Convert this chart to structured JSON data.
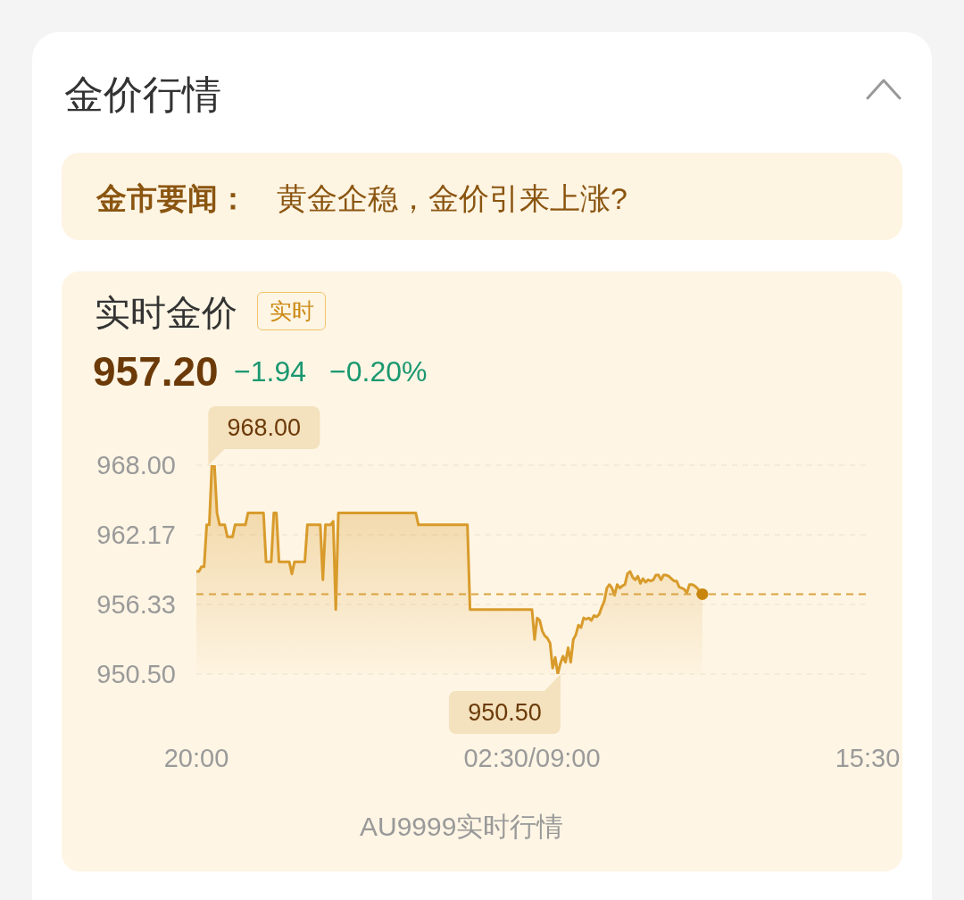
{
  "chart_data": {
    "type": "area",
    "title": "实时金价",
    "annotations": [
      "金价行情",
      "金市要闻：",
      "黄金企稳，金价引来上涨?",
      "实时",
      "957.20",
      "−1.94",
      "−0.20%",
      "AU9999实时行情",
      "968.00",
      "950.50"
    ],
    "categories": [
      "20:00",
      null,
      null,
      null,
      null,
      null,
      null,
      null,
      null,
      null,
      null,
      null,
      null,
      null,
      null,
      null,
      null,
      null,
      null,
      null,
      null,
      null,
      null,
      null,
      null,
      null,
      null,
      null,
      null,
      null,
      null,
      null,
      null,
      null,
      null,
      null,
      null,
      null,
      null,
      null,
      null,
      null,
      null,
      null,
      null,
      null,
      null,
      null,
      null,
      null,
      null,
      null,
      null,
      null,
      null,
      null,
      null,
      null,
      null,
      null,
      null,
      null,
      null,
      null,
      null,
      null,
      null,
      null,
      null,
      null,
      null,
      null,
      null,
      null,
      null,
      null,
      null,
      null,
      null,
      null,
      null,
      null,
      null,
      null,
      null,
      null,
      null,
      null,
      null,
      null,
      null,
      null,
      null,
      null,
      null,
      null,
      null,
      null,
      null,
      null,
      null,
      null,
      null,
      null,
      null,
      null,
      null,
      null,
      null,
      null,
      null,
      null,
      null,
      null,
      null,
      null,
      null,
      null,
      null,
      null,
      null,
      null,
      null,
      null,
      null,
      null,
      null,
      null,
      null,
      null,
      "02:30/09:00",
      null,
      null,
      null,
      null,
      null,
      null,
      null,
      null,
      null,
      null,
      null,
      null,
      null,
      null,
      null,
      null,
      null,
      null,
      null,
      null,
      null,
      null,
      null,
      null,
      null,
      null,
      null,
      null,
      null,
      null,
      null,
      null,
      null,
      null,
      null,
      null,
      null,
      null,
      null,
      null,
      null,
      null,
      null,
      null,
      null,
      null,
      null,
      null,
      null,
      null,
      null,
      null,
      null,
      null,
      null,
      null,
      null,
      null,
      null,
      null,
      null,
      null,
      null,
      null,
      null,
      null,
      null,
      null,
      null,
      null,
      null,
      null,
      null,
      null,
      null,
      null,
      null,
      null,
      null,
      null,
      null,
      null,
      null,
      null,
      null,
      null,
      null,
      null,
      null,
      null,
      null,
      null,
      null,
      null,
      null,
      null,
      null,
      null,
      null,
      null,
      null,
      null,
      null,
      null,
      null,
      null,
      null,
      null,
      null,
      null,
      null,
      null,
      null,
      null,
      null,
      null,
      null,
      null,
      null,
      null,
      null,
      null,
      null,
      null,
      null,
      null,
      null,
      null,
      null,
      "15:30"
    ],
    "series": [
      {
        "color": "#d89b2b",
        "values": [
          959.1,
          959.1,
          959.5,
          959.5,
          963,
          963,
          968,
          968,
          964,
          963,
          963,
          963,
          962,
          962,
          962,
          963,
          963,
          963,
          963,
          963,
          964,
          964,
          964,
          964,
          964,
          964,
          964,
          959.9,
          959.9,
          959.9,
          964,
          964,
          959.9,
          959.9,
          959.9,
          959.9,
          959.9,
          958.9,
          959.9,
          959.9,
          959.9,
          959.9,
          959.9,
          963,
          963,
          963,
          963,
          963,
          963,
          958.4,
          963,
          963,
          963,
          963.3,
          955.9,
          964,
          964,
          964,
          964,
          964,
          964,
          964,
          964,
          964,
          964,
          964,
          964,
          964,
          964,
          964,
          964,
          964,
          964,
          964,
          964,
          964,
          964,
          964,
          964,
          964,
          964,
          964,
          964,
          964,
          964,
          964,
          963,
          963,
          963,
          963,
          963,
          963,
          963,
          963,
          963,
          963,
          963,
          963,
          963,
          963,
          963,
          963,
          963,
          963,
          963,
          963,
          955.9,
          955.9,
          955.9,
          955.9,
          955.9,
          955.9,
          955.9,
          955.9,
          955.9,
          955.9,
          955.9,
          955.9,
          955.9,
          955.9,
          955.9,
          955.9,
          955.9,
          955.9,
          955.9,
          955.9,
          955.9,
          955.9,
          955.9,
          955.9,
          955.9,
          953.4,
          955.2,
          955,
          954.1,
          953.7,
          953.5,
          953.1,
          951,
          951.9,
          950.5,
          951.4,
          952,
          951.5,
          952.7,
          951.5,
          953.4,
          953.8,
          954.6,
          954.4,
          955.2,
          955.1,
          955.2,
          955,
          955.4,
          955.3,
          955.5,
          956.1,
          956.6,
          957.7,
          958,
          957.7,
          957.1,
          958,
          957.7,
          957.9,
          958,
          958.9,
          959.1,
          958.6,
          958.4,
          958.7,
          958.1,
          958.5,
          958.2,
          958.4,
          958.3,
          958.4,
          958.8,
          958.8,
          958.4,
          958.8,
          958.8,
          958.7,
          958.5,
          958.3,
          958.3,
          957.8,
          957.7,
          957.6,
          957.3,
          958,
          958,
          957.9,
          957.7,
          957.4,
          957.2,
          null,
          null,
          null,
          null,
          null,
          null,
          null,
          null,
          null,
          null,
          null,
          null,
          null,
          null,
          null,
          null,
          null,
          null,
          null,
          null,
          null,
          null,
          null,
          null,
          null,
          null,
          null,
          null,
          null,
          null,
          null,
          null,
          null,
          null,
          null,
          null,
          null,
          null,
          null,
          null,
          null,
          null,
          null,
          null,
          null,
          null,
          null,
          null,
          null,
          null,
          null,
          null,
          null,
          null,
          null,
          null,
          null,
          null,
          null,
          null,
          null,
          null,
          null,
          null
        ]
      },
      {
        "type": "scatter",
        "color": "#c8860f",
        "marker": "circle",
        "values": [
          null,
          null,
          null,
          null,
          null,
          null,
          null,
          null,
          null,
          null,
          null,
          null,
          null,
          null,
          null,
          null,
          null,
          null,
          null,
          null,
          null,
          null,
          null,
          null,
          null,
          null,
          null,
          null,
          null,
          null,
          null,
          null,
          null,
          null,
          null,
          null,
          null,
          null,
          null,
          null,
          null,
          null,
          null,
          null,
          null,
          null,
          null,
          null,
          null,
          null,
          null,
          null,
          null,
          null,
          null,
          null,
          null,
          null,
          null,
          null,
          null,
          null,
          null,
          null,
          null,
          null,
          null,
          null,
          null,
          null,
          null,
          null,
          null,
          null,
          null,
          null,
          null,
          null,
          null,
          null,
          null,
          null,
          null,
          null,
          null,
          null,
          null,
          null,
          null,
          null,
          null,
          null,
          null,
          null,
          null,
          null,
          null,
          null,
          null,
          null,
          null,
          null,
          null,
          null,
          null,
          null,
          null,
          null,
          null,
          null,
          null,
          null,
          null,
          null,
          null,
          null,
          null,
          null,
          null,
          null,
          null,
          null,
          null,
          null,
          null,
          null,
          null,
          null,
          null,
          null,
          null,
          null,
          null,
          null,
          null,
          null,
          null,
          null,
          null,
          null,
          null,
          null,
          null,
          null,
          null,
          null,
          null,
          null,
          null,
          null,
          null,
          null,
          null,
          null,
          null,
          null,
          null,
          null,
          null,
          null,
          null,
          null,
          null,
          null,
          null,
          null,
          null,
          null,
          null,
          null,
          null,
          null,
          null,
          null,
          null,
          null,
          null,
          null,
          null,
          null,
          null,
          null,
          null,
          null,
          null,
          null,
          null,
          null,
          null,
          null,
          null,
          null,
          null,
          null,
          null,
          null,
          957.2,
          null,
          null,
          null,
          null,
          null,
          null,
          null,
          null,
          null,
          null,
          null,
          null,
          null,
          null,
          null,
          null,
          null,
          null,
          null,
          null,
          null,
          null,
          null,
          null,
          null,
          null,
          null,
          null,
          null,
          null,
          null,
          null,
          null,
          null,
          null,
          null,
          null,
          null,
          null,
          null,
          null,
          null,
          null,
          null,
          null,
          null,
          null,
          null,
          null,
          null,
          null,
          null,
          null,
          null,
          null,
          null,
          null,
          null,
          null,
          null,
          null,
          null,
          null,
          null
        ]
      }
    ],
    "ylim": [
      950.5,
      968
    ],
    "yticks": [
      {
        "value": 950.5,
        "label": "950.50"
      },
      956.33,
      962.17,
      {
        "value": 968,
        "label": "968.00"
      }
    ],
    "grid": "y",
    "ref_lines": [
      {
        "axis": "y",
        "value": 957.2,
        "color": "#d9a441",
        "line_style": "dashed"
      }
    ]
  }
}
